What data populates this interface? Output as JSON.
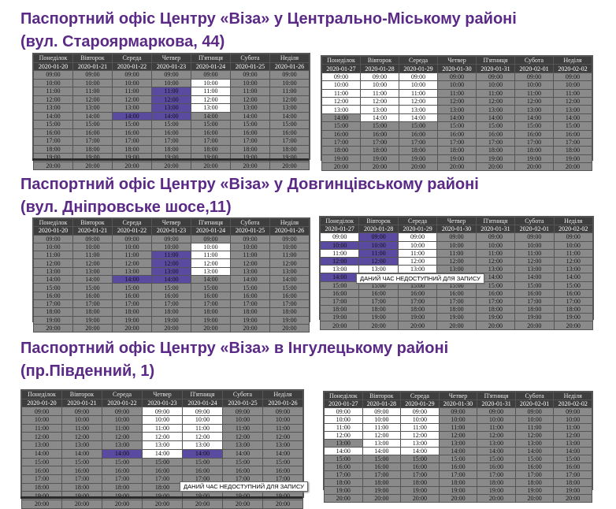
{
  "offices": [
    {
      "title1": "Паспортний офіс Центру «Віза» у Центрально-Міському районі",
      "title2": "(вул. Староярмаркова, 44)"
    },
    {
      "title1": "Паспортний офіс Центру «Віза» у Довгинцівському районі",
      "title2": "(вул. Дніпровське шосе,11)"
    },
    {
      "title1": "Паспортний офіс Центру «Віза» в Інгулецькому районі",
      "title2": "(пр.Південний, 1)"
    }
  ],
  "days": [
    "Понеділок",
    "Вівторок",
    "Середа",
    "Четвер",
    "П'ятниця",
    "Субота",
    "Неділя"
  ],
  "hours": [
    "09:00",
    "10:00",
    "11:00",
    "12:00",
    "13:00",
    "14:00",
    "15:00",
    "16:00",
    "17:00",
    "18:00",
    "19:00",
    "20:00"
  ],
  "weeks": {
    "w1": [
      "2020-01-20",
      "2020-01-21",
      "2020-01-22",
      "2020-01-23",
      "2020-01-24",
      "2020-01-25",
      "2020-01-26"
    ],
    "w2": [
      "2020-01-27",
      "2020-01-28",
      "2020-01-29",
      "2020-01-30",
      "2020-01-31",
      "2020-02-01",
      "2020-02-02"
    ]
  },
  "tooltip": "ДАНИЙ ЧАС НЕДОСТУПНИЙ ДЛЯ ЗАПИСУ",
  "colors": {
    "title": "#5b2a86",
    "busy": "#5a4aa0",
    "free": "#ffffff",
    "closed": "#8a8a8a",
    "header": "#3e3e3e"
  },
  "grids": [
    {
      "id": "g1",
      "week": "w1",
      "rows": [
        "ggggggg",
        "ggggwgg",
        "gggpwgg",
        "gggpwgg",
        "gggpwgg",
        "ggppggg",
        "ggggggg",
        "ggggggg",
        "ggggggg",
        "ggggggg",
        "ggggggg",
        "ggggggg"
      ]
    },
    {
      "id": "g2",
      "week": "w2",
      "rows": [
        "wwwgggg",
        "wwwgggg",
        "wwwgggg",
        "wwwgggg",
        "wwwgggg",
        "gwwgggg",
        "ggggggg",
        "ggggggg",
        "ggggggg",
        "ggggggg",
        "ggggggg",
        "ggggggg"
      ]
    },
    {
      "id": "g3",
      "week": "w1",
      "rows": [
        "ggggggg",
        "ggggwgg",
        "gggpwgg",
        "gggpwgg",
        "gggpwgg",
        "ggppggg",
        "ggggggg",
        "ggggggg",
        "ggggggg",
        "ggggggg",
        "ggggggg",
        "ggggggg"
      ]
    },
    {
      "id": "g4",
      "week": "w2",
      "rows": [
        "wpwgggg",
        "ppwgggg",
        "wpwgggg",
        "ppwgggg",
        "wwwgggg",
        "ppwgggg",
        "ggggggg",
        "ggggggg",
        "ggggggg",
        "ggggggg",
        "ggggggg",
        "ggggggg"
      ]
    },
    {
      "id": "g5",
      "week": "w1",
      "rows": [
        "gggwwgg",
        "gggwwgg",
        "gggwwgg",
        "gggwwgg",
        "gggwwgg",
        "ggpwpgg",
        "ggggggg",
        "ggggggg",
        "ggggggg",
        "ggggggg",
        "ggggggg",
        "ggggggg"
      ]
    },
    {
      "id": "g6",
      "week": "w2",
      "rows": [
        "wwwgggg",
        "wwwgggg",
        "wwwgggg",
        "wwwgggg",
        "gwwgggg",
        "wwwgggg",
        "ggggggg",
        "ggggggg",
        "ggggggg",
        "ggggggg",
        "ggggggg",
        "ggggggg"
      ]
    }
  ]
}
